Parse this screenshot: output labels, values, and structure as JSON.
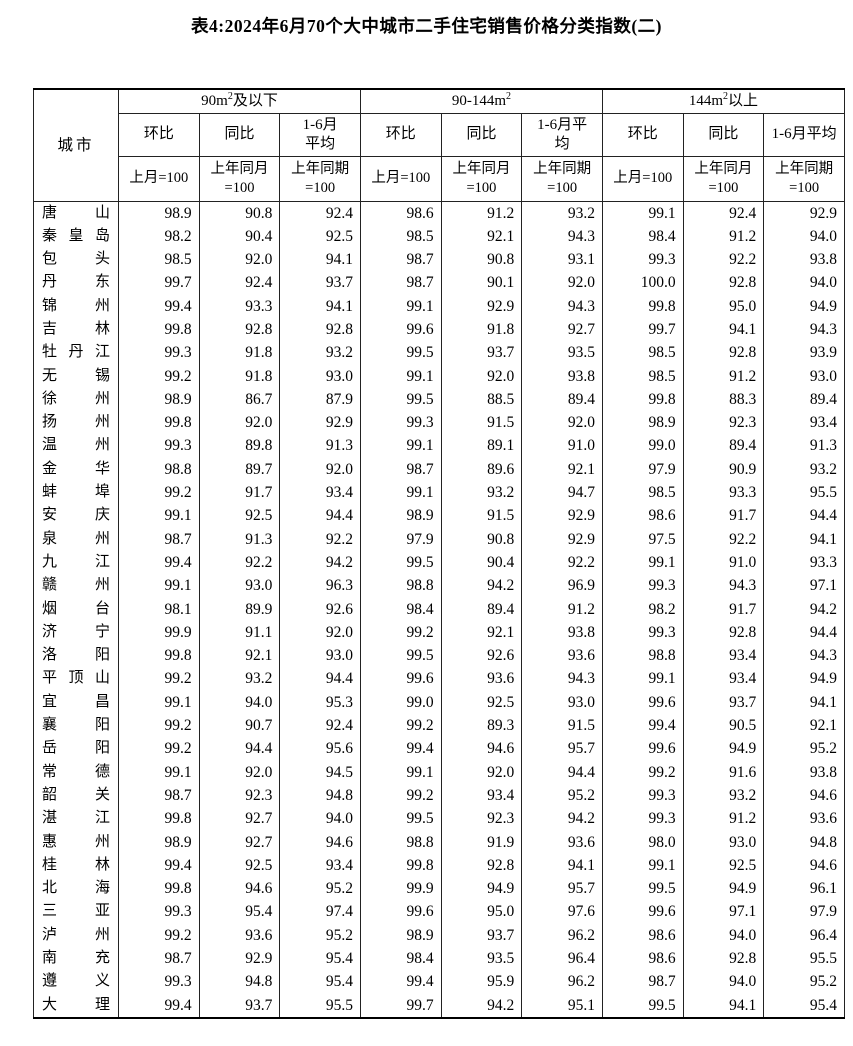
{
  "title": "表4:2024年6月70个大中城市二手住宅销售价格分类指数(二)",
  "table": {
    "header": {
      "city_label": "城市",
      "groups": [
        {
          "pre": "90m",
          "sup": "2",
          "post": "及以下"
        },
        {
          "pre": "90-144m",
          "sup": "2",
          "post": ""
        },
        {
          "pre": "144m",
          "sup": "2",
          "post": "以上"
        }
      ],
      "sub_labels": [
        "环比",
        "同比",
        "1-6月\n平均",
        "环比",
        "同比",
        "1-6月平\n均",
        "环比",
        "同比",
        "1-6月平均"
      ],
      "base_labels": [
        "上月=100",
        "上年同月\n=100",
        "上年同期\n=100",
        "上月=100",
        "上年同月\n=100",
        "上年同期\n=100",
        "上月=100",
        "上年同月\n=100",
        "上年同期\n=100"
      ]
    },
    "rows": [
      {
        "name": "唐山",
        "values": [
          "98.9",
          "90.8",
          "92.4",
          "98.6",
          "91.2",
          "93.2",
          "99.1",
          "92.4",
          "92.9"
        ]
      },
      {
        "name": "秦皇岛",
        "values": [
          "98.2",
          "90.4",
          "92.5",
          "98.5",
          "92.1",
          "94.3",
          "98.4",
          "91.2",
          "94.0"
        ]
      },
      {
        "name": "包头",
        "values": [
          "98.5",
          "92.0",
          "94.1",
          "98.7",
          "90.8",
          "93.1",
          "99.3",
          "92.2",
          "93.8"
        ]
      },
      {
        "name": "丹东",
        "values": [
          "99.7",
          "92.4",
          "93.7",
          "98.7",
          "90.1",
          "92.0",
          "100.0",
          "92.8",
          "94.0"
        ]
      },
      {
        "name": "锦州",
        "values": [
          "99.4",
          "93.3",
          "94.1",
          "99.1",
          "92.9",
          "94.3",
          "99.8",
          "95.0",
          "94.9"
        ]
      },
      {
        "name": "吉林",
        "values": [
          "99.8",
          "92.8",
          "92.8",
          "99.6",
          "91.8",
          "92.7",
          "99.7",
          "94.1",
          "94.3"
        ]
      },
      {
        "name": "牡丹江",
        "values": [
          "99.3",
          "91.8",
          "93.2",
          "99.5",
          "93.7",
          "93.5",
          "98.5",
          "92.8",
          "93.9"
        ]
      },
      {
        "name": "无锡",
        "values": [
          "99.2",
          "91.8",
          "93.0",
          "99.1",
          "92.0",
          "93.8",
          "98.5",
          "91.2",
          "93.0"
        ]
      },
      {
        "name": "徐州",
        "values": [
          "98.9",
          "86.7",
          "87.9",
          "99.5",
          "88.5",
          "89.4",
          "99.8",
          "88.3",
          "89.4"
        ]
      },
      {
        "name": "扬州",
        "values": [
          "99.8",
          "92.0",
          "92.9",
          "99.3",
          "91.5",
          "92.0",
          "98.9",
          "92.3",
          "93.4"
        ]
      },
      {
        "name": "温州",
        "values": [
          "99.3",
          "89.8",
          "91.3",
          "99.1",
          "89.1",
          "91.0",
          "99.0",
          "89.4",
          "91.3"
        ]
      },
      {
        "name": "金华",
        "values": [
          "98.8",
          "89.7",
          "92.0",
          "98.7",
          "89.6",
          "92.1",
          "97.9",
          "90.9",
          "93.2"
        ]
      },
      {
        "name": "蚌埠",
        "values": [
          "99.2",
          "91.7",
          "93.4",
          "99.1",
          "93.2",
          "94.7",
          "98.5",
          "93.3",
          "95.5"
        ]
      },
      {
        "name": "安庆",
        "values": [
          "99.1",
          "92.5",
          "94.4",
          "98.9",
          "91.5",
          "92.9",
          "98.6",
          "91.7",
          "94.4"
        ]
      },
      {
        "name": "泉州",
        "values": [
          "98.7",
          "91.3",
          "92.2",
          "97.9",
          "90.8",
          "92.9",
          "97.5",
          "92.2",
          "94.1"
        ]
      },
      {
        "name": "九江",
        "values": [
          "99.4",
          "92.2",
          "94.2",
          "99.5",
          "90.4",
          "92.2",
          "99.1",
          "91.0",
          "93.3"
        ]
      },
      {
        "name": "赣州",
        "values": [
          "99.1",
          "93.0",
          "96.3",
          "98.8",
          "94.2",
          "96.9",
          "99.3",
          "94.3",
          "97.1"
        ]
      },
      {
        "name": "烟台",
        "values": [
          "98.1",
          "89.9",
          "92.6",
          "98.4",
          "89.4",
          "91.2",
          "98.2",
          "91.7",
          "94.2"
        ]
      },
      {
        "name": "济宁",
        "values": [
          "99.9",
          "91.1",
          "92.0",
          "99.2",
          "92.1",
          "93.8",
          "99.3",
          "92.8",
          "94.4"
        ]
      },
      {
        "name": "洛阳",
        "values": [
          "99.8",
          "92.1",
          "93.0",
          "99.5",
          "92.6",
          "93.6",
          "98.8",
          "93.4",
          "94.3"
        ]
      },
      {
        "name": "平顶山",
        "values": [
          "99.2",
          "93.2",
          "94.4",
          "99.6",
          "93.6",
          "94.3",
          "99.1",
          "93.4",
          "94.9"
        ]
      },
      {
        "name": "宜昌",
        "values": [
          "99.1",
          "94.0",
          "95.3",
          "99.0",
          "92.5",
          "93.0",
          "99.6",
          "93.7",
          "94.1"
        ]
      },
      {
        "name": "襄阳",
        "values": [
          "99.2",
          "90.7",
          "92.4",
          "99.2",
          "89.3",
          "91.5",
          "99.4",
          "90.5",
          "92.1"
        ]
      },
      {
        "name": "岳阳",
        "values": [
          "99.2",
          "94.4",
          "95.6",
          "99.4",
          "94.6",
          "95.7",
          "99.6",
          "94.9",
          "95.2"
        ]
      },
      {
        "name": "常德",
        "values": [
          "99.1",
          "92.0",
          "94.5",
          "99.1",
          "92.0",
          "94.4",
          "99.2",
          "91.6",
          "93.8"
        ]
      },
      {
        "name": "韶关",
        "values": [
          "98.7",
          "92.3",
          "94.8",
          "99.2",
          "93.4",
          "95.2",
          "99.3",
          "93.2",
          "94.6"
        ]
      },
      {
        "name": "湛江",
        "values": [
          "99.8",
          "92.7",
          "94.0",
          "99.5",
          "92.3",
          "94.2",
          "99.3",
          "91.2",
          "93.6"
        ]
      },
      {
        "name": "惠州",
        "values": [
          "98.9",
          "92.7",
          "94.6",
          "98.8",
          "91.9",
          "93.6",
          "98.0",
          "93.0",
          "94.8"
        ]
      },
      {
        "name": "桂林",
        "values": [
          "99.4",
          "92.5",
          "93.4",
          "99.8",
          "92.8",
          "94.1",
          "99.1",
          "92.5",
          "94.6"
        ]
      },
      {
        "name": "北海",
        "values": [
          "99.8",
          "94.6",
          "95.2",
          "99.9",
          "94.9",
          "95.7",
          "99.5",
          "94.9",
          "96.1"
        ]
      },
      {
        "name": "三亚",
        "values": [
          "99.3",
          "95.4",
          "97.4",
          "99.6",
          "95.0",
          "97.6",
          "99.6",
          "97.1",
          "97.9"
        ]
      },
      {
        "name": "泸州",
        "values": [
          "99.2",
          "93.6",
          "95.2",
          "98.9",
          "93.7",
          "96.2",
          "98.6",
          "94.0",
          "96.4"
        ]
      },
      {
        "name": "南充",
        "values": [
          "98.7",
          "92.9",
          "95.4",
          "98.4",
          "93.5",
          "96.4",
          "98.6",
          "92.8",
          "95.5"
        ]
      },
      {
        "name": "遵义",
        "values": [
          "99.3",
          "94.8",
          "95.4",
          "99.4",
          "95.9",
          "96.2",
          "98.7",
          "94.0",
          "95.2"
        ]
      },
      {
        "name": "大理",
        "values": [
          "99.4",
          "93.7",
          "95.5",
          "99.7",
          "94.2",
          "95.1",
          "99.5",
          "94.1",
          "95.4"
        ]
      }
    ]
  }
}
